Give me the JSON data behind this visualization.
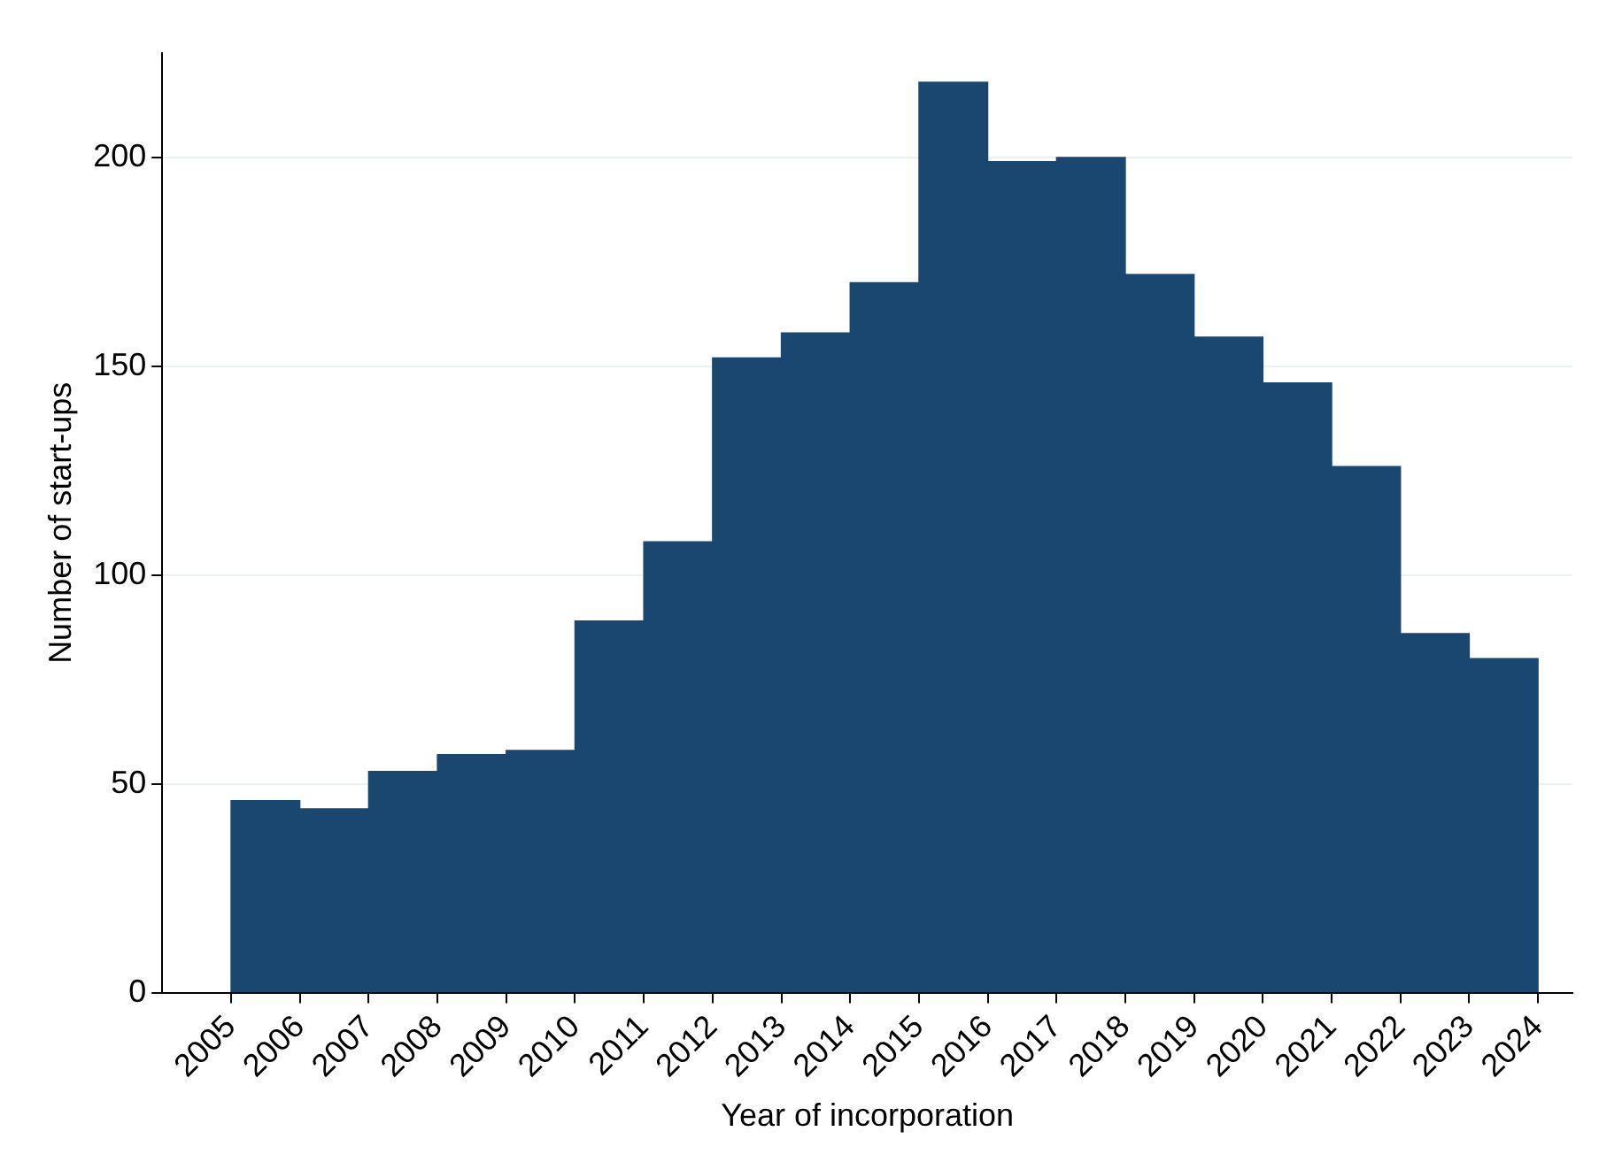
{
  "chart_data": {
    "type": "histogram",
    "xlabel": "Year of incorporation",
    "ylabel": "Number of start-ups",
    "bins": [
      2005,
      2006,
      2007,
      2008,
      2009,
      2010,
      2011,
      2012,
      2013,
      2014,
      2015,
      2016,
      2017,
      2018,
      2019,
      2020,
      2021,
      2022,
      2023,
      2024
    ],
    "values": [
      46,
      44,
      53,
      57,
      58,
      89,
      108,
      152,
      158,
      170,
      218,
      199,
      200,
      172,
      157,
      146,
      126,
      86,
      80
    ],
    "color": "#1a476f",
    "xlim": [
      2004,
      2024.5
    ],
    "xticks": [
      2005,
      2006,
      2007,
      2008,
      2009,
      2010,
      2011,
      2012,
      2013,
      2014,
      2015,
      2016,
      2017,
      2018,
      2019,
      2020,
      2021,
      2022,
      2023,
      2024
    ],
    "ylim": [
      0,
      225
    ],
    "yticks": [
      0,
      50,
      100,
      150,
      200
    ],
    "grid": "y"
  }
}
